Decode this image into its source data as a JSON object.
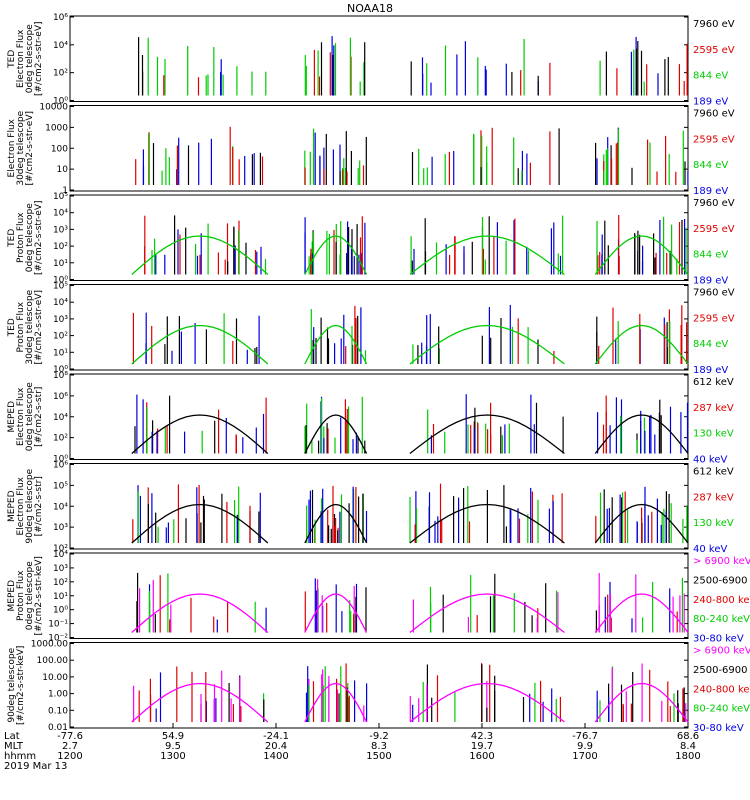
{
  "title": "NOAA18",
  "chart_data": {
    "type": "scatter",
    "title": "NOAA18",
    "x_axis": {
      "rows": [
        {
          "label": "Lat",
          "values": [
            "-77.6",
            "54.9",
            "-24.1",
            "-9.2",
            "42.3",
            "-76.7",
            "68.6"
          ]
        },
        {
          "label": "MLT",
          "values": [
            "2.7",
            "9.5",
            "20.4",
            "8.3",
            "19.7",
            "9.9",
            "8.4"
          ]
        },
        {
          "label": "hhmm",
          "values": [
            "1200",
            "1300",
            "1400",
            "1500",
            "1600",
            "1700",
            "1800"
          ]
        }
      ],
      "date": "2019 Mar 13",
      "xlim": [
        1200,
        1800
      ]
    },
    "panels": [
      {
        "ylabel": [
          "TED",
          "Electron Flux",
          "0deg telescope",
          "[#/cm2-s-str-eV]"
        ],
        "scale": "log",
        "yticks": [
          "10⁰",
          "10²",
          "10⁴",
          "10⁶"
        ],
        "ylim": [
          1,
          1000000
        ],
        "legend": [
          {
            "name": "7960 eV",
            "color": "#000000"
          },
          {
            "name": "2595 eV",
            "color": "#e00000"
          },
          {
            "name": "844 eV",
            "color": "#00cc00"
          },
          {
            "name": "189 eV",
            "color": "#0000e0"
          }
        ]
      },
      {
        "ylabel": [
          "Electron Flux",
          "30deg telescope",
          "[#/cm2-s-str-eV]"
        ],
        "scale": "log",
        "yticks": [
          "1",
          "10",
          "100",
          "1000",
          "10000"
        ],
        "ylim": [
          1,
          10000
        ],
        "legend": [
          {
            "name": "7960 eV",
            "color": "#000000"
          },
          {
            "name": "2595 eV",
            "color": "#e00000"
          },
          {
            "name": "844 eV",
            "color": "#00cc00"
          },
          {
            "name": "189 eV",
            "color": "#0000e0"
          }
        ]
      },
      {
        "ylabel": [
          "TED",
          "Proton Flux",
          "0deg telescope",
          "[#/cm2-s-str-eV]"
        ],
        "scale": "log",
        "yticks": [
          "10⁰",
          "10¹",
          "10²",
          "10³",
          "10⁴",
          "10⁵"
        ],
        "ylim": [
          1,
          100000
        ],
        "legend": [
          {
            "name": "7960 eV",
            "color": "#000000"
          },
          {
            "name": "2595 eV",
            "color": "#e00000"
          },
          {
            "name": "844 eV",
            "color": "#00cc00"
          },
          {
            "name": "189 eV",
            "color": "#0000e0"
          }
        ]
      },
      {
        "ylabel": [
          "TED",
          "Proton Flux",
          "30deg telescope",
          "[#/cm2-s-str-eV]"
        ],
        "scale": "log",
        "yticks": [
          "10⁰",
          "10¹",
          "10²",
          "10³",
          "10⁴",
          "10⁵"
        ],
        "ylim": [
          1,
          100000
        ],
        "legend": [
          {
            "name": "7960 eV",
            "color": "#000000"
          },
          {
            "name": "2595 eV",
            "color": "#e00000"
          },
          {
            "name": "844 eV",
            "color": "#00cc00"
          },
          {
            "name": "189 eV",
            "color": "#0000e0"
          }
        ]
      },
      {
        "ylabel": [
          "MEPED",
          "Electron Flux",
          "0deg telescope",
          "[#/cm2-s-str]"
        ],
        "scale": "log",
        "yticks": [
          "10⁰",
          "10²",
          "10⁴",
          "10⁶",
          "10⁸"
        ],
        "ylim": [
          1,
          100000000
        ],
        "legend": [
          {
            "name": "612 keV",
            "color": "#000000"
          },
          {
            "name": "287 keV",
            "color": "#e00000"
          },
          {
            "name": "130 keV",
            "color": "#00cc00"
          },
          {
            "name": "40 keV",
            "color": "#0000e0"
          }
        ]
      },
      {
        "ylabel": [
          "MEPED",
          "Electron Flux",
          "90deg telescope",
          "[#/cm2-s-str]"
        ],
        "scale": "log",
        "yticks": [
          "10²",
          "10³",
          "10⁴",
          "10⁵",
          "10⁶"
        ],
        "ylim": [
          100,
          1000000
        ],
        "legend": [
          {
            "name": "612 keV",
            "color": "#000000"
          },
          {
            "name": "287 keV",
            "color": "#e00000"
          },
          {
            "name": "130 keV",
            "color": "#00cc00"
          },
          {
            "name": "40 keV",
            "color": "#0000e0"
          }
        ]
      },
      {
        "ylabel": [
          "MEPED",
          "Proton Flux",
          "0deg telescope",
          "[#/cm2-s-str-keV]"
        ],
        "scale": "log",
        "yticks": [
          "10⁻²",
          "10⁻¹",
          "10⁰",
          "10¹",
          "10²",
          "10³",
          "10⁴"
        ],
        "ylim": [
          0.01,
          10000
        ],
        "legend": [
          {
            "name": "> 6900 keV",
            "color": "#ff00ff"
          },
          {
            "name": "2500-6900",
            "color": "#000000"
          },
          {
            "name": "240-800 keV",
            "color": "#e00000"
          },
          {
            "name": "80-240 keV",
            "color": "#00cc00"
          },
          {
            "name": "30-80 keV",
            "color": "#0000e0"
          }
        ]
      },
      {
        "ylabel": [
          "90deg telescope",
          "[#/cm2-s-str-keV]"
        ],
        "scale": "log",
        "yticks": [
          "0.01",
          "0.10",
          "1.00",
          "10.00",
          "100.00",
          "1000.00"
        ],
        "ylim": [
          0.01,
          1000
        ],
        "legend": [
          {
            "name": "> 6900 keV",
            "color": "#ff00ff"
          },
          {
            "name": "2500-6900",
            "color": "#000000"
          },
          {
            "name": "240-800 keV",
            "color": "#e00000"
          },
          {
            "name": "80-240 keV",
            "color": "#00cc00"
          },
          {
            "name": "30-80 keV",
            "color": "#0000e0"
          }
        ]
      }
    ]
  }
}
